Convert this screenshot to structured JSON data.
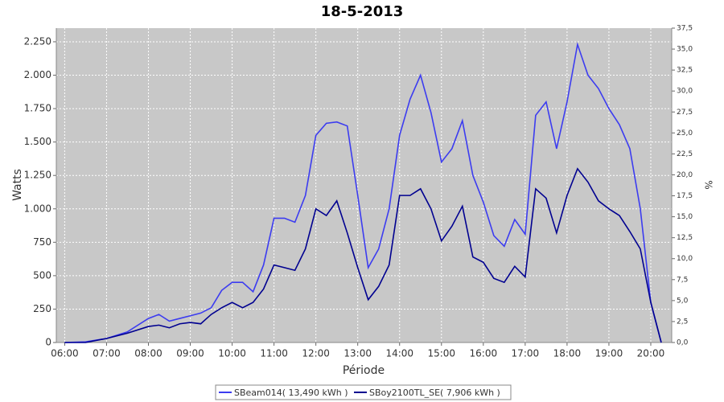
{
  "chart_data": {
    "type": "line",
    "title": "18-5-2013",
    "x_label": "Période",
    "y_label": "Watts",
    "y2_label": "%",
    "x": [
      6,
      6.5,
      7,
      7.5,
      8,
      8.25,
      8.5,
      8.75,
      9,
      9.25,
      9.5,
      9.75,
      10,
      10.25,
      10.5,
      10.75,
      11,
      11.25,
      11.5,
      11.75,
      12,
      12.25,
      12.5,
      12.75,
      13,
      13.25,
      13.5,
      13.75,
      14,
      14.25,
      14.5,
      14.75,
      15,
      15.25,
      15.5,
      15.75,
      16,
      16.25,
      16.5,
      16.75,
      17,
      17.25,
      17.5,
      17.75,
      18,
      18.25,
      18.5,
      18.75,
      19,
      19.25,
      19.5,
      19.75,
      20,
      20.25
    ],
    "series": [
      {
        "name": "SBeam014( 13,490 kWh )",
        "color": "#3c3cf0",
        "values": [
          0,
          5,
          30,
          80,
          180,
          210,
          160,
          180,
          200,
          220,
          260,
          390,
          450,
          450,
          380,
          580,
          930,
          930,
          900,
          1100,
          1550,
          1640,
          1650,
          1620,
          1100,
          560,
          700,
          1000,
          1550,
          1820,
          2000,
          1720,
          1350,
          1450,
          1660,
          1250,
          1050,
          800,
          720,
          920,
          810,
          1700,
          1800,
          1450,
          1800,
          2230,
          2000,
          1900,
          1750,
          1630,
          1450,
          1000,
          300,
          0
        ]
      },
      {
        "name": "SBoy2100TL_SE( 7,906 kWh )",
        "color": "#000090",
        "values": [
          0,
          0,
          30,
          70,
          120,
          130,
          110,
          140,
          150,
          140,
          210,
          260,
          300,
          260,
          300,
          400,
          580,
          560,
          540,
          700,
          1000,
          950,
          1060,
          820,
          560,
          320,
          420,
          580,
          1100,
          1100,
          1150,
          1000,
          760,
          870,
          1020,
          640,
          600,
          480,
          450,
          570,
          490,
          1150,
          1080,
          820,
          1100,
          1300,
          1200,
          1060,
          1000,
          950,
          830,
          700,
          300,
          0
        ]
      }
    ],
    "xlim": [
      5.8,
      20.5
    ],
    "xticks": [
      {
        "value": 6,
        "label": "06:00"
      },
      {
        "value": 7,
        "label": "07:00"
      },
      {
        "value": 8,
        "label": "08:00"
      },
      {
        "value": 9,
        "label": "09:00"
      },
      {
        "value": 10,
        "label": "10:00"
      },
      {
        "value": 11,
        "label": "11:00"
      },
      {
        "value": 12,
        "label": "12:00"
      },
      {
        "value": 13,
        "label": "13:00"
      },
      {
        "value": 14,
        "label": "14:00"
      },
      {
        "value": 15,
        "label": "15:00"
      },
      {
        "value": 16,
        "label": "16:00"
      },
      {
        "value": 17,
        "label": "17:00"
      },
      {
        "value": 18,
        "label": "18:00"
      },
      {
        "value": 19,
        "label": "19:00"
      },
      {
        "value": 20,
        "label": "20:00"
      }
    ],
    "ylim": [
      0,
      2352
    ],
    "yticks": [
      0,
      250,
      500,
      750,
      {
        "value": 1000,
        "label": "1.000"
      },
      {
        "value": 1250,
        "label": "1.250"
      },
      {
        "value": 1500,
        "label": "1.500"
      },
      {
        "value": 1750,
        "label": "1.750"
      },
      {
        "value": 2000,
        "label": "2.000"
      },
      {
        "value": 2250,
        "label": "2.250"
      }
    ],
    "y2lim": [
      0,
      37.5
    ],
    "y2ticks": [
      {
        "value": 0,
        "label": "0,0"
      },
      {
        "value": 2.5,
        "label": "2,5"
      },
      {
        "value": 5,
        "label": "5,0"
      },
      {
        "value": 7.5,
        "label": "7,5"
      },
      {
        "value": 10,
        "label": "10,0"
      },
      {
        "value": 12.5,
        "label": "12,5"
      },
      {
        "value": 15,
        "label": "15,0"
      },
      {
        "value": 17.5,
        "label": "17,5"
      },
      {
        "value": 20,
        "label": "20,0"
      },
      {
        "value": 22.5,
        "label": "22,5"
      },
      {
        "value": 25,
        "label": "25,0"
      },
      {
        "value": 27.5,
        "label": "27,5"
      },
      {
        "value": 30,
        "label": "30,0"
      },
      {
        "value": 32.5,
        "label": "32,5"
      },
      {
        "value": 35,
        "label": "35,0"
      },
      {
        "value": 37.5,
        "label": "37,5"
      }
    ],
    "grid": true
  }
}
